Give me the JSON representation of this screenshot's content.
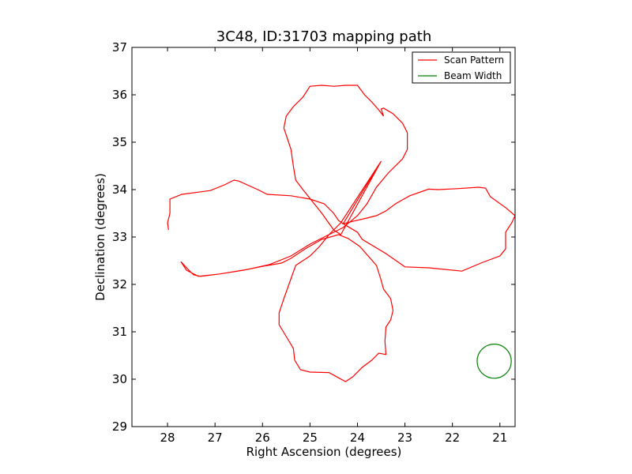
{
  "chart_data": {
    "type": "line",
    "title": "3C48, ID:31703 mapping path",
    "xlabel": "Right Ascension (degrees)",
    "ylabel": "Declination (degrees)",
    "xlim": [
      28.75,
      20.68
    ],
    "ylim": [
      29,
      37
    ],
    "x_ticks": [
      28,
      27,
      26,
      25,
      24,
      23,
      22,
      21
    ],
    "x_tick_labels": [
      "28",
      "27",
      "26",
      "25",
      "24",
      "23",
      "22",
      "21"
    ],
    "y_ticks": [
      29,
      30,
      31,
      32,
      33,
      34,
      35,
      36,
      37
    ],
    "y_tick_labels": [
      "29",
      "30",
      "31",
      "32",
      "33",
      "34",
      "35",
      "36",
      "37"
    ],
    "grid": false,
    "legend": {
      "placement": "top-right",
      "entries": [
        {
          "label": "Scan Pattern",
          "color": "#ff0000"
        },
        {
          "label": "Beam Width",
          "color": "#008000"
        }
      ]
    },
    "series": [
      {
        "name": "Scan Pattern",
        "color": "#ff0000",
        "points": [
          [
            27.98,
            33.15
          ],
          [
            28.0,
            33.3
          ],
          [
            27.95,
            33.5
          ],
          [
            27.95,
            33.8
          ],
          [
            27.7,
            33.9
          ],
          [
            27.1,
            33.98
          ],
          [
            26.8,
            34.1
          ],
          [
            26.6,
            34.2
          ],
          [
            26.5,
            34.18
          ],
          [
            26.1,
            34.0
          ],
          [
            25.9,
            33.9
          ],
          [
            25.4,
            33.87
          ],
          [
            25.0,
            33.8
          ],
          [
            24.7,
            33.7
          ],
          [
            24.5,
            33.5
          ],
          [
            24.4,
            33.35
          ],
          [
            24.3,
            33.28
          ],
          [
            24.0,
            33.1
          ],
          [
            23.9,
            32.95
          ],
          [
            23.4,
            32.65
          ],
          [
            23.0,
            32.37
          ],
          [
            22.5,
            32.35
          ],
          [
            21.8,
            32.28
          ],
          [
            21.4,
            32.45
          ],
          [
            21.0,
            32.6
          ],
          [
            20.88,
            32.75
          ],
          [
            20.88,
            33.1
          ],
          [
            20.75,
            33.3
          ],
          [
            20.68,
            33.45
          ],
          [
            20.88,
            33.62
          ],
          [
            21.2,
            33.85
          ],
          [
            21.3,
            34.03
          ],
          [
            21.45,
            34.05
          ],
          [
            21.9,
            34.02
          ],
          [
            22.3,
            34.0
          ],
          [
            22.5,
            34.01
          ],
          [
            22.9,
            33.87
          ],
          [
            23.2,
            33.7
          ],
          [
            23.4,
            33.55
          ],
          [
            23.6,
            33.45
          ],
          [
            23.8,
            33.4
          ],
          [
            24.1,
            33.33
          ],
          [
            24.3,
            33.28
          ],
          [
            23.5,
            34.6
          ],
          [
            24.35,
            33.3
          ],
          [
            24.6,
            33.05
          ],
          [
            24.8,
            32.8
          ],
          [
            25.0,
            32.6
          ],
          [
            25.3,
            32.4
          ],
          [
            25.55,
            31.7
          ],
          [
            25.65,
            31.4
          ],
          [
            25.65,
            31.15
          ],
          [
            25.5,
            30.9
          ],
          [
            25.35,
            30.65
          ],
          [
            25.32,
            30.4
          ],
          [
            25.2,
            30.2
          ],
          [
            25.0,
            30.15
          ],
          [
            24.6,
            30.14
          ],
          [
            24.4,
            30.03
          ],
          [
            24.25,
            29.95
          ],
          [
            24.1,
            30.05
          ],
          [
            23.9,
            30.25
          ],
          [
            23.7,
            30.4
          ],
          [
            23.55,
            30.55
          ],
          [
            23.4,
            30.52
          ],
          [
            23.42,
            30.8
          ],
          [
            23.4,
            31.1
          ],
          [
            23.3,
            31.25
          ],
          [
            23.25,
            31.45
          ],
          [
            23.3,
            31.7
          ],
          [
            23.45,
            31.9
          ],
          [
            23.52,
            32.15
          ],
          [
            23.6,
            32.4
          ],
          [
            23.95,
            32.8
          ],
          [
            24.2,
            32.97
          ],
          [
            24.4,
            33.05
          ],
          [
            24.75,
            32.95
          ],
          [
            25.1,
            32.75
          ],
          [
            25.4,
            32.55
          ],
          [
            25.6,
            32.45
          ],
          [
            26.0,
            32.38
          ],
          [
            26.4,
            32.3
          ],
          [
            26.9,
            32.22
          ],
          [
            27.3,
            32.17
          ],
          [
            27.45,
            32.2
          ],
          [
            27.55,
            32.3
          ],
          [
            27.72,
            32.48
          ],
          [
            27.6,
            32.3
          ],
          [
            27.35,
            32.17
          ],
          [
            26.9,
            32.22
          ],
          [
            26.3,
            32.32
          ],
          [
            25.85,
            32.42
          ],
          [
            25.4,
            32.6
          ],
          [
            25.0,
            32.85
          ],
          [
            24.6,
            33.05
          ],
          [
            24.3,
            33.2
          ],
          [
            24.0,
            33.45
          ],
          [
            23.8,
            33.7
          ],
          [
            23.6,
            34.05
          ],
          [
            23.35,
            34.35
          ],
          [
            23.05,
            34.65
          ],
          [
            22.95,
            34.85
          ],
          [
            22.95,
            35.2
          ],
          [
            23.05,
            35.4
          ],
          [
            23.25,
            35.6
          ],
          [
            23.45,
            35.72
          ],
          [
            23.5,
            35.7
          ],
          [
            23.45,
            35.55
          ],
          [
            23.55,
            35.68
          ],
          [
            23.7,
            35.85
          ],
          [
            23.85,
            36.0
          ],
          [
            24.0,
            36.2
          ],
          [
            24.25,
            36.2
          ],
          [
            24.5,
            36.18
          ],
          [
            24.75,
            36.2
          ],
          [
            25.0,
            36.18
          ],
          [
            25.15,
            35.95
          ],
          [
            25.35,
            35.75
          ],
          [
            25.5,
            35.55
          ],
          [
            25.55,
            35.3
          ],
          [
            25.45,
            35.0
          ],
          [
            25.4,
            34.85
          ],
          [
            25.35,
            34.5
          ],
          [
            25.3,
            34.2
          ],
          [
            25.15,
            34.0
          ],
          [
            24.95,
            33.75
          ],
          [
            24.75,
            33.5
          ],
          [
            24.5,
            33.15
          ],
          [
            24.35,
            33.05
          ],
          [
            23.5,
            34.6
          ]
        ]
      },
      {
        "name": "Beam Width",
        "color": "#008000",
        "center": [
          21.12,
          30.38
        ],
        "radius_deg": 0.36
      }
    ]
  }
}
